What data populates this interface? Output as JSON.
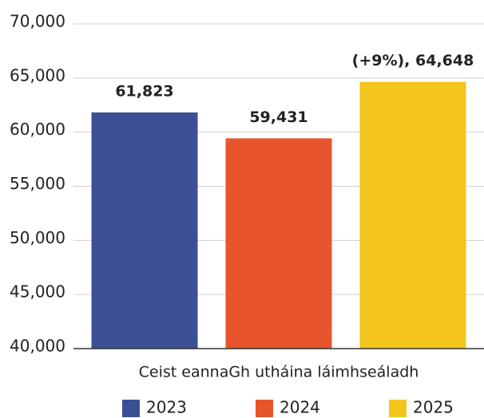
{
  "chart_data": {
    "type": "bar",
    "categories": [
      "Ceist eannaGh utháina láimhseáladh"
    ],
    "series": [
      {
        "name": "2023",
        "color": "#3b4f94",
        "values": [
          61823
        ],
        "value_labels": [
          "61,823"
        ]
      },
      {
        "name": "2024",
        "color": "#e8552d",
        "values": [
          59431
        ],
        "value_labels": [
          "59,431"
        ]
      },
      {
        "name": "2025",
        "color": "#f2c41c",
        "values": [
          64648
        ],
        "value_labels": [
          "(+9%), 64,648"
        ]
      }
    ],
    "ylim": [
      40000,
      70000
    ],
    "yticks": [
      {
        "value": 40000,
        "label": "40,000"
      },
      {
        "value": 45000,
        "label": "45,000"
      },
      {
        "value": 50000,
        "label": "50,000"
      },
      {
        "value": 55000,
        "label": "55,000"
      },
      {
        "value": 60000,
        "label": "60,000"
      },
      {
        "value": 65000,
        "label": "65,000"
      },
      {
        "value": 70000,
        "label": "70,000"
      }
    ],
    "grid": true,
    "legend": "bottom"
  }
}
